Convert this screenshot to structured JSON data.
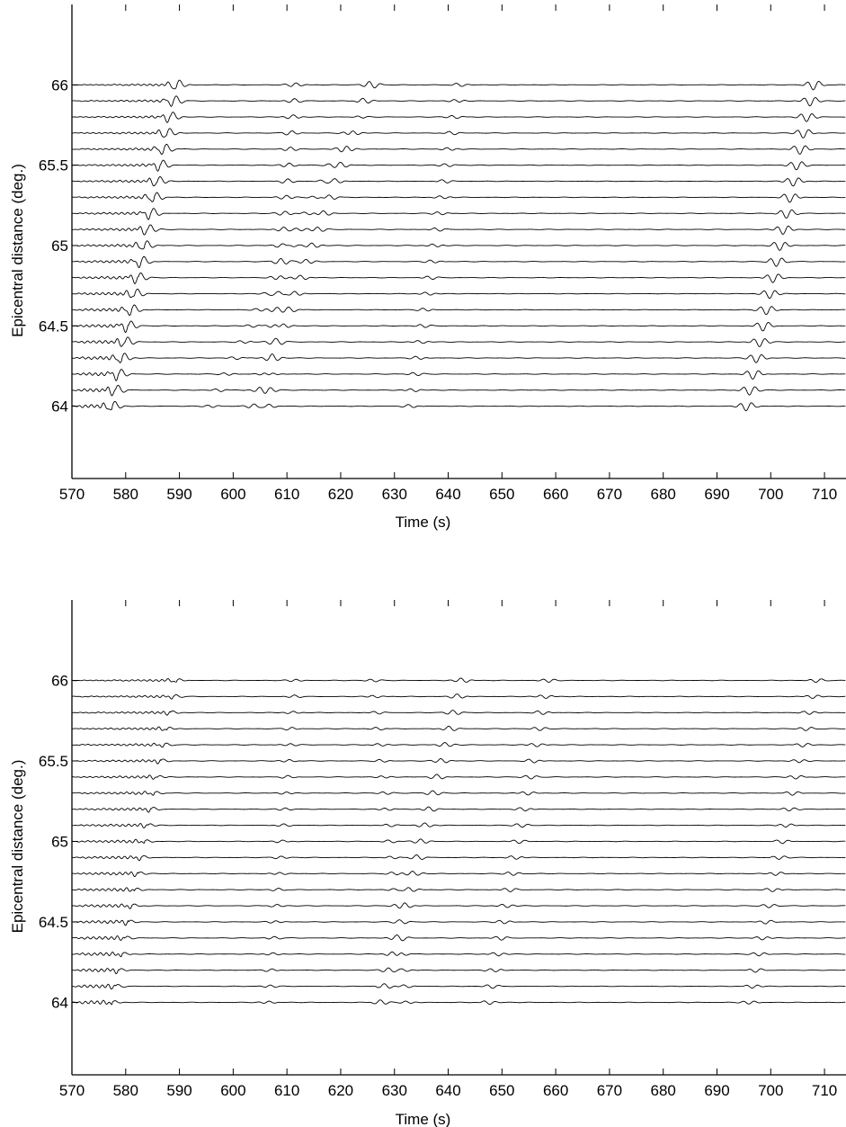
{
  "chart_data": [
    {
      "type": "line",
      "title": "",
      "xlabel": "Time (s)",
      "ylabel": "Epicentral distance (deg.)",
      "xlim": [
        570,
        714
      ],
      "ylim": [
        63.55,
        66.5
      ],
      "x_ticks": [
        570,
        580,
        590,
        600,
        610,
        620,
        630,
        640,
        650,
        660,
        670,
        680,
        690,
        700,
        710
      ],
      "y_ticks": [
        64,
        64.5,
        65,
        65.5,
        66
      ],
      "grid": false,
      "trace_offsets_deg": [
        64.0,
        64.1,
        64.2,
        64.3,
        64.4,
        64.5,
        64.6,
        64.7,
        64.8,
        64.9,
        65.0,
        65.1,
        65.2,
        65.3,
        65.4,
        65.5,
        65.6,
        65.7,
        65.8,
        65.9,
        66.0
      ],
      "arrivals": [
        {
          "t0": 577.5,
          "t1": 589.5,
          "amp": 1.0,
          "name": "arrival-1"
        },
        {
          "t0": 606.5,
          "t1": 611.5,
          "amp": 0.4,
          "name": "arrival-2"
        },
        {
          "t0": 604.0,
          "t1": 625.5,
          "amp": 0.45,
          "name": "arrival-3"
        },
        {
          "t0": 633.0,
          "t1": 642.0,
          "amp": 0.3,
          "name": "arrival-4"
        },
        {
          "t0": 596.0,
          "t1": 626.0,
          "amp": 0.25,
          "name": "arrival-5"
        },
        {
          "t0": 695.5,
          "t1": 708.0,
          "amp": 0.9,
          "name": "arrival-6"
        }
      ]
    },
    {
      "type": "line",
      "title": "",
      "xlabel": "Time (s)",
      "ylabel": "Epicentral distance (deg.)",
      "xlim": [
        570,
        714
      ],
      "ylim": [
        63.55,
        66.5
      ],
      "x_ticks": [
        570,
        580,
        590,
        600,
        610,
        620,
        630,
        640,
        650,
        660,
        670,
        680,
        690,
        700,
        710
      ],
      "y_ticks": [
        64,
        64.5,
        65,
        65.5,
        66
      ],
      "grid": false,
      "trace_offsets_deg": [
        64.0,
        64.1,
        64.2,
        64.3,
        64.4,
        64.5,
        64.6,
        64.7,
        64.8,
        64.9,
        65.0,
        65.1,
        65.2,
        65.3,
        65.4,
        65.5,
        65.6,
        65.7,
        65.8,
        65.9,
        66.0
      ],
      "arrivals": [
        {
          "t0": 577.5,
          "t1": 589.5,
          "amp": 0.35,
          "name": "arrival-1"
        },
        {
          "t0": 606.5,
          "t1": 611.5,
          "amp": 0.25,
          "name": "arrival-2"
        },
        {
          "t0": 627.5,
          "t1": 642.5,
          "amp": 0.45,
          "name": "arrival-3"
        },
        {
          "t0": 632.5,
          "t1": 626.0,
          "amp": 0.25,
          "name": "arrival-4"
        },
        {
          "t0": 647.5,
          "t1": 658.5,
          "amp": 0.35,
          "name": "arrival-5"
        },
        {
          "t0": 696.0,
          "t1": 708.5,
          "amp": 0.35,
          "name": "arrival-6"
        }
      ]
    }
  ]
}
